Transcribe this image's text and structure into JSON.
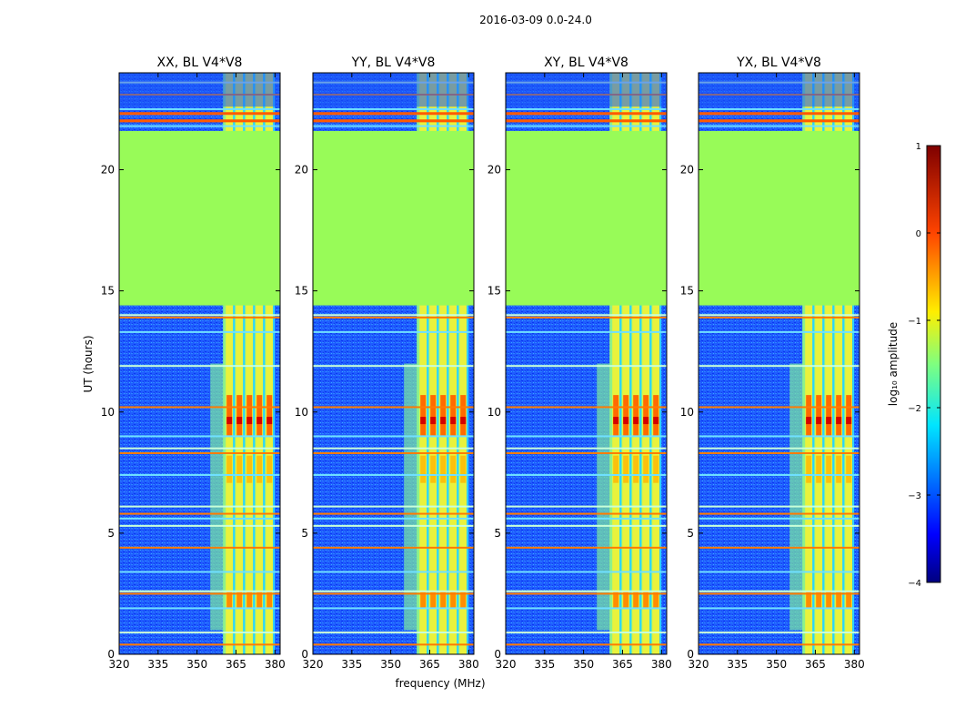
{
  "suptitle": "2016-03-09 0.0-24.0",
  "chart_data": {
    "type": "heatmap",
    "title": "2016-03-09 0.0-24.0",
    "xlabel": "frequency (MHz)",
    "ylabel": "UT (hours)",
    "xlim": [
      320,
      382
    ],
    "ylim": [
      0,
      24
    ],
    "xticks": [
      320,
      335,
      350,
      365,
      380
    ],
    "yticks": [
      0,
      5,
      10,
      15,
      20
    ],
    "panels": [
      {
        "title": "XX, BL V4*V8",
        "band_start_mhz": 360
      },
      {
        "title": "YY, BL V4*V8",
        "band_start_mhz": 360
      },
      {
        "title": "XY, BL V4*V8",
        "band_start_mhz": 360
      },
      {
        "title": "YX, BL V4*V8",
        "band_start_mhz": 360
      }
    ],
    "colorbar": {
      "label": "log₁₀ amplitude",
      "range": [
        -4,
        1
      ],
      "ticks": [
        "1",
        "0",
        "−1",
        "−2",
        "−3",
        "−4"
      ],
      "colormap": "jet"
    },
    "flagged_interval_hours": [
      14.4,
      21.6
    ],
    "flag_color": "#98fb58",
    "horizontal_rfi_lines_hours": [
      0.4,
      0.9,
      1.9,
      2.5,
      2.6,
      3.4,
      4.4,
      5.3,
      5.6,
      5.8,
      6.1,
      7.4,
      8.3,
      8.5,
      9.0,
      10.2,
      11.9,
      13.3,
      13.9,
      14.0,
      21.8,
      22.0,
      22.3,
      22.5,
      23.1,
      23.6
    ]
  }
}
